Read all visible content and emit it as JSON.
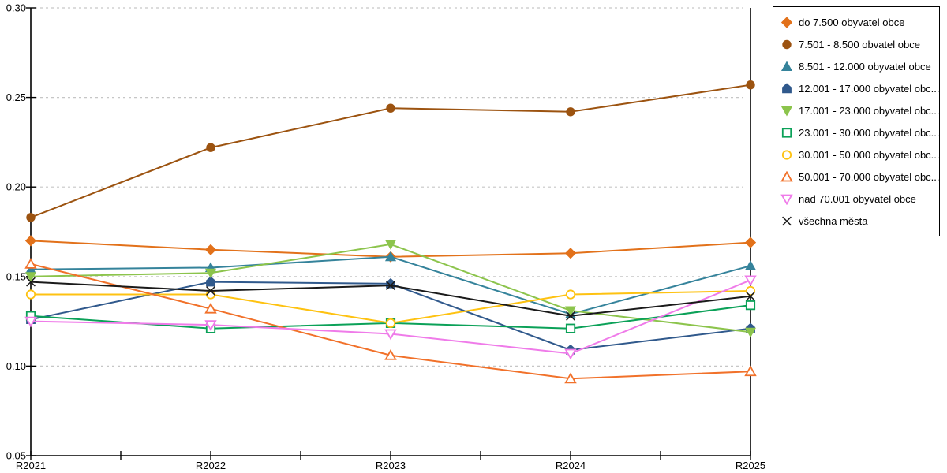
{
  "chart_data": {
    "type": "line",
    "title": "",
    "xlabel": "",
    "ylabel": "",
    "categories": [
      "R2021",
      "R2022",
      "R2023",
      "R2024",
      "R2025"
    ],
    "y_axis": {
      "min": 0.05,
      "max": 0.3,
      "step": 0.05,
      "tick_labels": [
        "0.30",
        "0.25",
        "0.20",
        "0.15",
        "0.10",
        "0.05"
      ]
    },
    "grid": "horizontal dashed",
    "gridline_color": "#c6c6c6",
    "axis_color": "#000000",
    "legend_position": "right",
    "series": [
      {
        "label": "do 7.500 obyvatel obce",
        "color": "#e2711a",
        "marker": "diamond",
        "marker_fill": "filled",
        "values": [
          0.17,
          0.165,
          0.161,
          0.163,
          0.169
        ]
      },
      {
        "label": "7.501 - 8.500 obvatel obce",
        "color": "#9c5310",
        "marker": "circle",
        "marker_fill": "filled",
        "values": [
          0.183,
          0.222,
          0.244,
          0.242,
          0.257
        ]
      },
      {
        "label": "8.501 - 12.000 obyvatel obce",
        "color": "#35839b",
        "marker": "triangle-up",
        "marker_fill": "filled",
        "values": [
          0.154,
          0.155,
          0.161,
          0.129,
          0.156
        ]
      },
      {
        "label": "12.001 - 17.000 obyvatel obc...",
        "color": "#30598c",
        "marker": "pentagon",
        "marker_fill": "filled",
        "values": [
          0.126,
          0.147,
          0.146,
          0.109,
          0.121
        ]
      },
      {
        "label": "17.001 - 23.000 obyvatel obc...",
        "color": "#8cc44c",
        "marker": "triangle-down",
        "marker_fill": "filled",
        "values": [
          0.15,
          0.152,
          0.168,
          0.131,
          0.119
        ]
      },
      {
        "label": "23.001 - 30.000 obyvatel obc...",
        "color": "#0ba158",
        "marker": "square",
        "marker_fill": "hollow",
        "values": [
          0.128,
          0.121,
          0.124,
          0.121,
          0.134
        ]
      },
      {
        "label": "30.001 - 50.000 obyvatel obc...",
        "color": "#fec211",
        "marker": "circle",
        "marker_fill": "hollow",
        "values": [
          0.14,
          0.14,
          0.124,
          0.14,
          0.142
        ]
      },
      {
        "label": "50.001 - 70.000 obyvatel obc...",
        "color": "#f1712a",
        "marker": "triangle-up",
        "marker_fill": "hollow",
        "values": [
          0.157,
          0.132,
          0.106,
          0.093,
          0.097
        ]
      },
      {
        "label": "nad 70.001 obyvatel obce",
        "color": "#ef7be9",
        "marker": "triangle-down",
        "marker_fill": "hollow",
        "values": [
          0.125,
          0.123,
          0.118,
          0.107,
          0.148
        ]
      },
      {
        "label": "všechna města",
        "color": "#1a1a1a",
        "marker": "x",
        "marker_fill": "line",
        "values": [
          0.147,
          0.142,
          0.145,
          0.128,
          0.139
        ]
      }
    ]
  }
}
